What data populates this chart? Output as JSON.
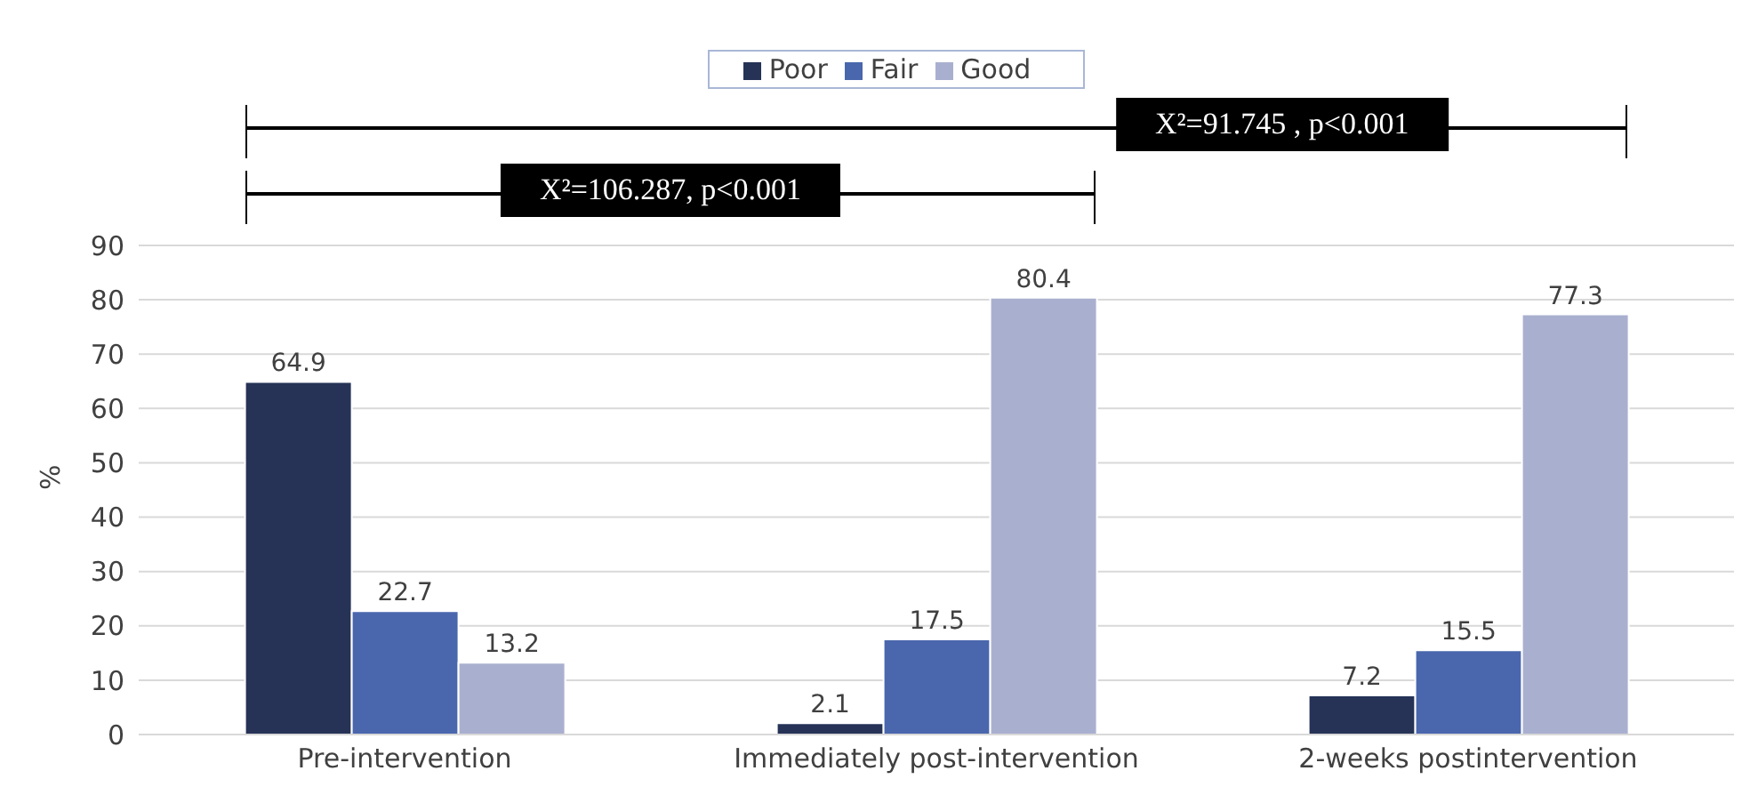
{
  "chart_data": {
    "type": "bar",
    "ylabel": "%",
    "categories": [
      "Pre-intervention",
      "Immediately post-intervention",
      "2-weeks postintervention"
    ],
    "series": [
      {
        "name": "Poor",
        "color": "#263357",
        "values": [
          64.9,
          2.1,
          7.2
        ]
      },
      {
        "name": "Fair",
        "color": "#4a67ad",
        "values": [
          22.7,
          17.5,
          15.5
        ]
      },
      {
        "name": "Good",
        "color": "#a9b0cf",
        "values": [
          13.2,
          80.4,
          77.3
        ]
      }
    ],
    "ylim": [
      0,
      90
    ],
    "yticks": [
      0,
      10,
      20,
      30,
      40,
      50,
      60,
      70,
      80,
      90
    ],
    "grid": "y",
    "legend": "top",
    "data_labels": true,
    "annotations": [
      "X²=91.745 , p<0.001",
      "X²=106.287, p<0.001"
    ]
  }
}
